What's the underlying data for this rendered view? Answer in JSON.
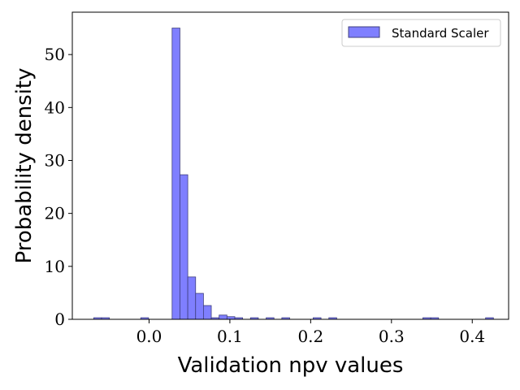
{
  "chart_data": {
    "type": "bar",
    "subtype": "histogram",
    "title": "",
    "xlabel": "Validation npv values",
    "ylabel": "Probability density",
    "xlim": [
      -0.095,
      0.445
    ],
    "ylim": [
      0,
      58
    ],
    "xticks": [
      0.0,
      0.1,
      0.2,
      0.3,
      0.4
    ],
    "xtick_labels": [
      "0.0",
      "0.1",
      "0.2",
      "0.3",
      "0.4"
    ],
    "yticks": [
      0,
      10,
      20,
      30,
      40,
      50
    ],
    "ytick_labels": [
      "0",
      "10",
      "20",
      "30",
      "40",
      "50"
    ],
    "grid": false,
    "legend": {
      "position": "top-right"
    },
    "bin_width": 0.0097,
    "series": [
      {
        "name": "Standard Scaler",
        "color": "#7f7fff",
        "edge_color": "#3f3f7f",
        "bins": [
          {
            "x0": -0.0685,
            "density": 0.3
          },
          {
            "x0": -0.0588,
            "density": 0.3
          },
          {
            "x0": -0.0103,
            "density": 0.3
          },
          {
            "x0": 0.0285,
            "density": 55.0
          },
          {
            "x0": 0.0382,
            "density": 27.3
          },
          {
            "x0": 0.0479,
            "density": 8.0
          },
          {
            "x0": 0.0576,
            "density": 4.9
          },
          {
            "x0": 0.0673,
            "density": 2.6
          },
          {
            "x0": 0.077,
            "density": 0.3
          },
          {
            "x0": 0.0867,
            "density": 0.8
          },
          {
            "x0": 0.0964,
            "density": 0.5
          },
          {
            "x0": 0.1061,
            "density": 0.3
          },
          {
            "x0": 0.1255,
            "density": 0.3
          },
          {
            "x0": 0.1449,
            "density": 0.3
          },
          {
            "x0": 0.1643,
            "density": 0.3
          },
          {
            "x0": 0.2031,
            "density": 0.3
          },
          {
            "x0": 0.2225,
            "density": 0.3
          },
          {
            "x0": 0.3389,
            "density": 0.3
          },
          {
            "x0": 0.3486,
            "density": 0.3
          },
          {
            "x0": 0.4165,
            "density": 0.3
          }
        ]
      }
    ]
  }
}
